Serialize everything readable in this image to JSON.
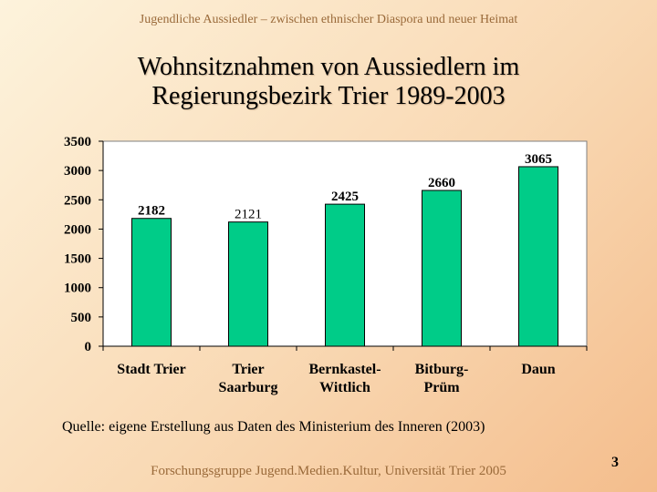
{
  "header": "Jugendliche Aussiedler – zwischen ethnischer Diaspora und neuer Heimat",
  "title_line1": "Wohnsitznahmen von Aussiedlern im",
  "title_line2": "Regierungsbezirk Trier 1989-2003",
  "source": "Quelle: eigene Erstellung aus Daten des Ministerium des Inneren (2003)",
  "footer": "Forschungsgruppe Jugend.Medien.Kultur, Universität Trier 2005",
  "page_number": "3",
  "chart_data": {
    "type": "bar",
    "categories": [
      [
        "Stadt Trier"
      ],
      [
        "Trier",
        "Saarburg"
      ],
      [
        "Bernkastel-",
        "Wittlich"
      ],
      [
        "Bitburg-",
        "Prüm"
      ],
      [
        "Daun"
      ]
    ],
    "values": [
      2182,
      2121,
      2425,
      2660,
      3065
    ],
    "data_labels": [
      "2182",
      "2121",
      "2425",
      "2660",
      "3065"
    ],
    "yticks": [
      0,
      500,
      1000,
      1500,
      2000,
      2500,
      3000,
      3500
    ],
    "ylim": [
      0,
      3500
    ],
    "bar_color": "#00cc88",
    "grid": false
  }
}
